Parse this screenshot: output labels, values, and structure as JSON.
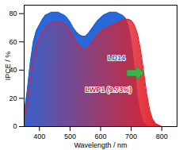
{
  "chart_data": {
    "type": "area",
    "x_label": "Wavelength / nm",
    "y_label": "IPCE / %",
    "x": [
      350,
      360,
      370,
      380,
      390,
      400,
      410,
      420,
      430,
      440,
      450,
      460,
      470,
      480,
      490,
      500,
      510,
      520,
      530,
      540,
      550,
      560,
      570,
      580,
      590,
      600,
      610,
      620,
      630,
      640,
      650,
      660,
      670,
      680,
      690,
      700,
      710,
      720,
      730,
      740,
      750,
      760,
      770,
      780,
      790,
      800
    ],
    "series": [
      {
        "name": "LD14",
        "color": "#1f5fd6",
        "values": [
          10,
          25,
          45,
          60,
          68,
          72,
          76,
          79,
          80,
          81,
          81,
          81,
          80,
          79,
          77,
          74,
          70,
          67,
          65,
          64,
          64,
          66,
          69,
          72,
          75,
          77,
          79,
          80,
          81,
          81,
          81,
          80,
          79,
          77,
          72,
          60,
          42,
          22,
          9,
          3,
          1,
          0,
          0,
          0,
          0,
          0
        ]
      },
      {
        "name": "LWP1 (9.73%)",
        "color": "#e0202a",
        "values": [
          5,
          15,
          32,
          48,
          58,
          62,
          66,
          70,
          72,
          73,
          74,
          74,
          74,
          73,
          71,
          68,
          64,
          60,
          57,
          55,
          55,
          56,
          59,
          62,
          65,
          67,
          69,
          70,
          71,
          72,
          73,
          74,
          75,
          76,
          76,
          75,
          72,
          66,
          55,
          40,
          24,
          12,
          5,
          2,
          1,
          0
        ]
      }
    ],
    "xlim": [
      350,
      850
    ],
    "xticks": [
      400,
      500,
      600,
      700,
      800
    ],
    "ylim": [
      0,
      86
    ],
    "yticks": [
      0,
      20,
      40,
      60,
      80
    ],
    "grid": false
  }
}
